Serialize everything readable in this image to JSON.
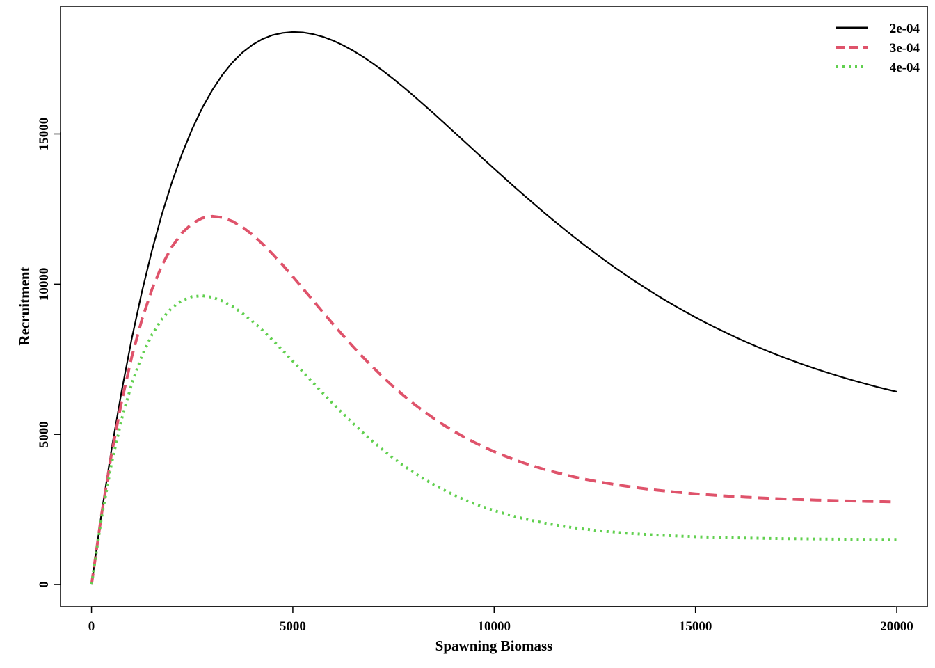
{
  "chart_data": {
    "type": "line",
    "title": "",
    "xlabel": "Spawning Biomass",
    "ylabel": "Recruitment",
    "xlim": [
      -770,
      20760
    ],
    "ylim": [
      -740,
      19250
    ],
    "xticks": [
      0,
      5000,
      10000,
      15000,
      20000
    ],
    "yticks": [
      0,
      5000,
      10000,
      15000
    ],
    "grid": false,
    "legend_position": "top-right",
    "x": [
      0,
      250,
      500,
      750,
      1000,
      1250,
      1500,
      1750,
      2000,
      2250,
      2500,
      2750,
      3000,
      3250,
      3500,
      3750,
      4000,
      4250,
      4500,
      4750,
      5000,
      5250,
      5500,
      5750,
      6000,
      6250,
      6500,
      6750,
      7000,
      7250,
      7500,
      7750,
      8000,
      8250,
      8500,
      8750,
      9000,
      9250,
      9500,
      9750,
      10000,
      10250,
      10500,
      10750,
      11000,
      11250,
      11500,
      11750,
      12000,
      12250,
      12500,
      12750,
      13000,
      13250,
      13500,
      13750,
      14000,
      14250,
      14500,
      14750,
      15000,
      15250,
      15500,
      15750,
      16000,
      16250,
      16500,
      16750,
      17000,
      17250,
      17500,
      17750,
      18000,
      18250,
      18500,
      18750,
      19000,
      19250,
      19500,
      19750,
      20000
    ],
    "series": [
      {
        "name": "2e-04",
        "color": "#000000",
        "dash": "solid",
        "values": [
          0,
          2378,
          4524,
          6455,
          8187,
          9735,
          11112,
          12332,
          13406,
          14347,
          15163,
          15866,
          16464,
          16966,
          17380,
          17712,
          17971,
          18162,
          18292,
          18364,
          18394,
          18380,
          18323,
          18232,
          18109,
          17951,
          17770,
          17563,
          17336,
          17090,
          16829,
          16555,
          16271,
          15978,
          15680,
          15377,
          15070,
          14763,
          14455,
          14148,
          13843,
          13541,
          13242,
          12947,
          12657,
          12372,
          12093,
          11820,
          11552,
          11292,
          11038,
          10792,
          10552,
          10320,
          10095,
          9878,
          9667,
          9464,
          9268,
          9079,
          8896,
          8720,
          8551,
          8388,
          8231,
          8080,
          7934,
          7795,
          7660,
          7531,
          7408,
          7289,
          7175,
          7065,
          6961,
          6860,
          6764,
          6672,
          6583,
          6499,
          6418
        ]
      },
      {
        "name": "3e-04",
        "color": "#DF536B",
        "dash": "dashed",
        "values": [
          0,
          2338,
          4365,
          6106,
          7581,
          8813,
          9822,
          10628,
          11250,
          11708,
          12018,
          12198,
          12259,
          12218,
          12093,
          11896,
          11640,
          11337,
          10998,
          10633,
          10250,
          9856,
          9458,
          9061,
          8669,
          8286,
          7916,
          7559,
          7218,
          6893,
          6585,
          6295,
          6022,
          5768,
          5530,
          5309,
          5104,
          4914,
          4738,
          4576,
          4426,
          4287,
          4160,
          4042,
          3934,
          3834,
          3743,
          3659,
          3581,
          3510,
          3445,
          3385,
          3329,
          3279,
          3232,
          3189,
          3149,
          3113,
          3079,
          3049,
          3020,
          2994,
          2970,
          2948,
          2928,
          2909,
          2892,
          2876,
          2861,
          2847,
          2834,
          2823,
          2812,
          2802,
          2792,
          2784,
          2776,
          2768,
          2761,
          2755,
          2749
        ]
      },
      {
        "name": "4e-04",
        "color": "#61D04F",
        "dash": "dotted",
        "values": [
          0,
          2229,
          4047,
          5515,
          6688,
          7609,
          8317,
          8843,
          9216,
          9456,
          9584,
          9614,
          9562,
          9440,
          9259,
          9029,
          8759,
          8458,
          8133,
          7791,
          7438,
          7080,
          6722,
          6368,
          6020,
          5682,
          5357,
          5045,
          4749,
          4469,
          4206,
          3961,
          3733,
          3522,
          3327,
          3148,
          2984,
          2835,
          2698,
          2574,
          2462,
          2361,
          2269,
          2187,
          2113,
          2047,
          1988,
          1934,
          1887,
          1844,
          1806,
          1772,
          1742,
          1714,
          1690,
          1669,
          1649,
          1632,
          1617,
          1603,
          1591,
          1580,
          1570,
          1562,
          1554,
          1547,
          1541,
          1535,
          1530,
          1526,
          1522,
          1518,
          1515,
          1512,
          1509,
          1507,
          1505,
          1503,
          1502,
          1500,
          1499
        ]
      }
    ]
  }
}
